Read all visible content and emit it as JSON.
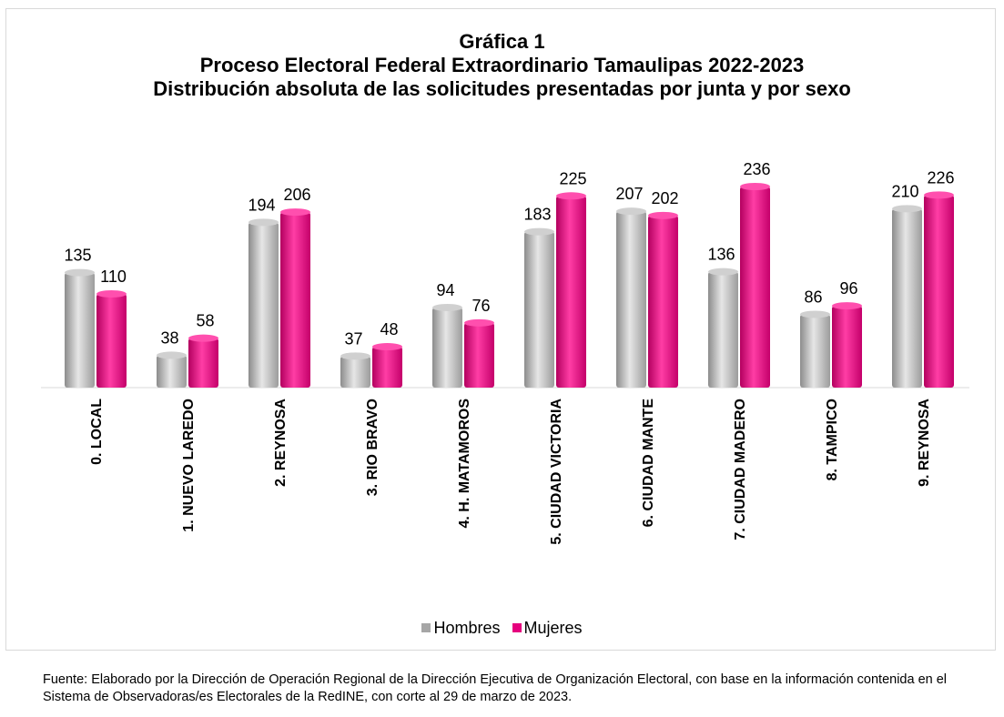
{
  "chart_data": {
    "type": "bar",
    "title": "Gráfica 1",
    "subtitle_line1": "Proceso Electoral Federal Extraordinario Tamaulipas 2022-2023",
    "subtitle_line2": "Distribución absoluta de las solicitudes presentadas por junta y por sexo",
    "categories": [
      "0. LOCAL",
      "1. NUEVO LAREDO",
      "2. REYNOSA",
      "3. RIO BRAVO",
      "4. H. MATAMOROS",
      "5. CIUDAD VICTORIA",
      "6. CIUDAD MANTE",
      "7. CIUDAD MADERO",
      "8. TAMPICO",
      "9. REYNOSA"
    ],
    "series": [
      {
        "name": "Hombres",
        "values": [
          135,
          38,
          194,
          37,
          94,
          183,
          207,
          136,
          86,
          210
        ],
        "color": "#a6a6a6"
      },
      {
        "name": "Mujeres",
        "values": [
          110,
          58,
          206,
          48,
          76,
          225,
          202,
          236,
          96,
          226
        ],
        "color": "#e6007e"
      }
    ],
    "ylim": [
      0,
      250
    ],
    "grid": false,
    "legend_position": "bottom",
    "source_note": "Fuente: Elaborado por la Dirección de Operación Regional de la Dirección Ejecutiva de Organización Electoral, con base en la información contenida en el Sistema de Observadoras/es Electorales de la RedINE, con corte al 29 de marzo de 2023."
  }
}
